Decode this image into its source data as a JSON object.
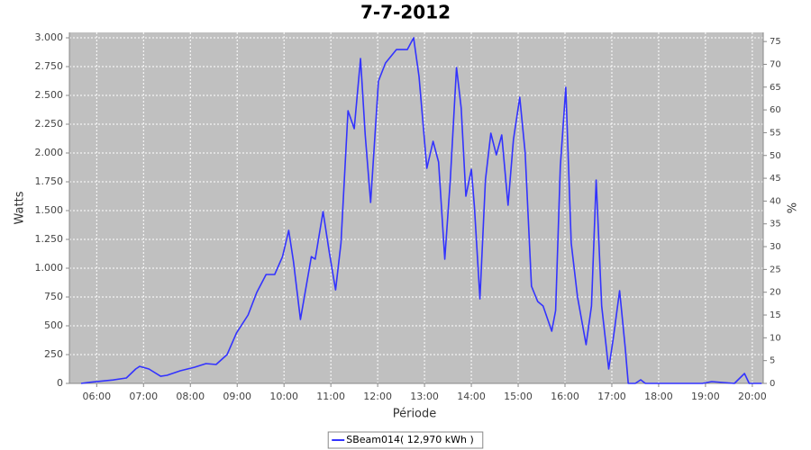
{
  "chart_data": {
    "type": "line",
    "title": "7-7-2012",
    "x_label": "Période",
    "y_label": "Watts",
    "y2_label": "%",
    "x": [
      "05:40",
      "05:52",
      "06:21",
      "06:38",
      "06:50",
      "06:55",
      "07:07",
      "07:22",
      "07:30",
      "07:47",
      "08:05",
      "08:20",
      "08:33",
      "08:47",
      "08:59",
      "09:14",
      "09:25",
      "09:37",
      "09:48",
      "09:58",
      "10:06",
      "10:12",
      "10:21",
      "10:35",
      "10:40",
      "10:50",
      "10:58",
      "11:06",
      "11:13",
      "11:22",
      "11:30",
      "11:38",
      "11:44",
      "11:51",
      "12:01",
      "12:10",
      "12:24",
      "12:38",
      "12:46",
      "12:53",
      "13:03",
      "13:11",
      "13:18",
      "13:26",
      "13:33",
      "13:41",
      "13:47",
      "13:53",
      "14:00",
      "14:04",
      "14:11",
      "14:18",
      "14:25",
      "14:32",
      "14:39",
      "14:47",
      "14:54",
      "15:02",
      "15:09",
      "15:17",
      "15:25",
      "15:32",
      "15:43",
      "15:48",
      "15:54",
      "16:01",
      "16:08",
      "16:16",
      "16:27",
      "16:34",
      "16:40",
      "16:47",
      "16:56",
      "17:02",
      "17:10",
      "17:17",
      "17:21",
      "17:30",
      "17:37",
      "17:43",
      "18:56",
      "19:08",
      "19:37",
      "19:50",
      "19:56",
      "20:12"
    ],
    "series": [
      {
        "name": "SBeam014( 12,970 kWh )",
        "color": "#3333ff",
        "values": [
          0,
          10,
          30,
          47,
          125,
          148,
          125,
          62,
          70,
          109,
          140,
          172,
          164,
          250,
          437,
          594,
          789,
          945,
          945,
          1100,
          1328,
          1062,
          555,
          1100,
          1078,
          1492,
          1140,
          812,
          1219,
          2367,
          2211,
          2820,
          2156,
          1570,
          2625,
          2781,
          2898,
          2898,
          3000,
          2664,
          1867,
          2102,
          1922,
          1078,
          1766,
          2742,
          2391,
          1625,
          1859,
          1531,
          734,
          1766,
          2172,
          1984,
          2156,
          1547,
          2117,
          2484,
          2000,
          844,
          711,
          672,
          453,
          633,
          1883,
          2570,
          1219,
          750,
          336,
          672,
          1766,
          672,
          125,
          398,
          805,
          320,
          0,
          0,
          31,
          0,
          0,
          16,
          0,
          86,
          0,
          0
        ]
      }
    ],
    "xlim": [
      "05:25",
      "20:14"
    ],
    "xticks": [
      "06:00",
      "07:00",
      "08:00",
      "09:00",
      "10:00",
      "11:00",
      "12:00",
      "13:00",
      "14:00",
      "15:00",
      "16:00",
      "17:00",
      "18:00",
      "19:00",
      "20:00"
    ],
    "ylim": [
      0,
      3047
    ],
    "yticks": [
      0,
      250,
      500,
      {
        "value": 750,
        "label": "750"
      },
      {
        "value": 1000,
        "label": "1.000"
      },
      {
        "value": 1250,
        "label": "1.250"
      },
      {
        "value": 1500,
        "label": "1.500"
      },
      {
        "value": 1750,
        "label": "1.750"
      },
      {
        "value": 2000,
        "label": "2.000"
      },
      {
        "value": 2250,
        "label": "2.250"
      },
      {
        "value": 2500,
        "label": "2.500"
      },
      {
        "value": 2750,
        "label": "2.750"
      },
      {
        "value": 3000,
        "label": "3.000"
      }
    ],
    "y2lim": [
      0,
      77
    ],
    "y2ticks": [
      0,
      5,
      10,
      15,
      20,
      25,
      30,
      35,
      40,
      45,
      50,
      55,
      60,
      65,
      70,
      75
    ],
    "grid": true,
    "legend": "bottom",
    "plot_background": "#c0c0c0"
  }
}
